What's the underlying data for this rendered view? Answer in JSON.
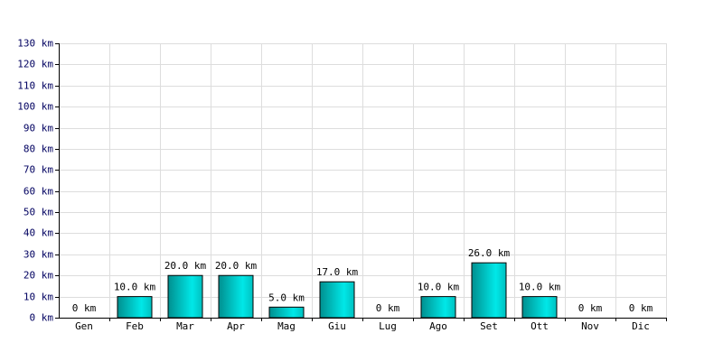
{
  "chart_data": {
    "type": "bar",
    "categories": [
      "Gen",
      "Feb",
      "Mar",
      "Apr",
      "Mag",
      "Giu",
      "Lug",
      "Ago",
      "Set",
      "Ott",
      "Nov",
      "Dic"
    ],
    "values": [
      0,
      10,
      20,
      20,
      5,
      17,
      0,
      10,
      26,
      10,
      0,
      0
    ],
    "value_labels": [
      "0 km",
      "10.0 km",
      "20.0 km",
      "20.0 km",
      "5.0 km",
      "17.0 km",
      "0 km",
      "10.0 km",
      "26.0 km",
      "10.0 km",
      "0 km",
      "0 km"
    ],
    "color": "#00cccc",
    "ylim": [
      0,
      130
    ],
    "yticks": [
      {
        "value": 0,
        "label": "0 km"
      },
      {
        "value": 10,
        "label": "10 km"
      },
      {
        "value": 20,
        "label": "20 km"
      },
      {
        "value": 30,
        "label": "30 km"
      },
      {
        "value": 40,
        "label": "40 km"
      },
      {
        "value": 50,
        "label": "50 km"
      },
      {
        "value": 60,
        "label": "60 km"
      },
      {
        "value": 70,
        "label": "70 km"
      },
      {
        "value": 80,
        "label": "80 km"
      },
      {
        "value": 90,
        "label": "90 km"
      },
      {
        "value": 100,
        "label": "100 km"
      },
      {
        "value": 110,
        "label": "110 km"
      },
      {
        "value": 120,
        "label": "120 km"
      },
      {
        "value": 130,
        "label": "130 km"
      }
    ],
    "grid": true
  }
}
